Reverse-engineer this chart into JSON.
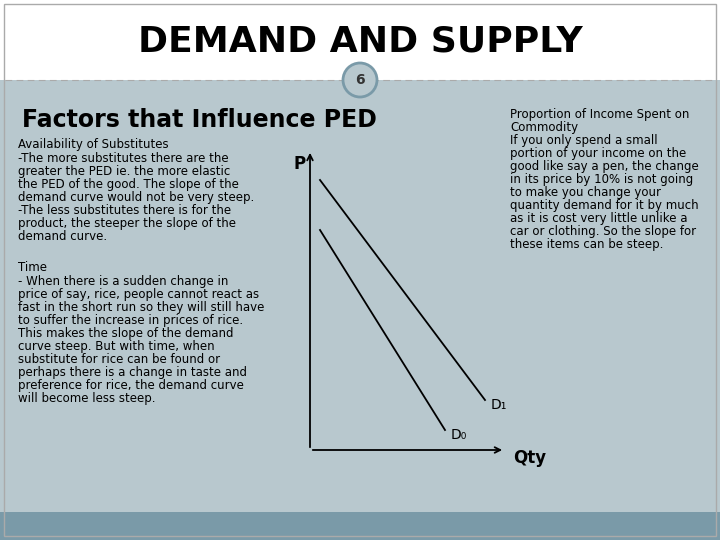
{
  "title": "DEMAND AND SUPPLY",
  "slide_number": "6",
  "section_title": "Factors that Influence PED",
  "bg_color": "#b8c8ce",
  "header_bg": "#ffffff",
  "footer_bg": "#7a9aa8",
  "text_color": "#000000",
  "avail_title": "Availability of Substitutes",
  "avail_body": [
    "-The more substitutes there are the",
    "greater the PED ie. the more elastic",
    "the PED of the good. The slope of the",
    "demand curve would not be very steep.",
    "-The less substitutes there is for the",
    "product, the steeper the slope of the",
    "demand curve."
  ],
  "time_title": "Time",
  "time_body": [
    "- When there is a sudden change in",
    "price of say, rice, people cannot react as",
    "fast in the short run so they will still have",
    "to suffer the increase in prices of rice.",
    "This makes the slope of the demand",
    "curve steep. But with time, when",
    "substitute for rice can be found or",
    "perhaps there is a change in taste and",
    "preference for rice, the demand curve",
    "will become less steep."
  ],
  "right_lines": [
    "Proportion of Income Spent on",
    "Commodity",
    "If you only spend a small",
    "portion of your income on the",
    "good like say a pen, the change",
    "in its price by 10% is not going",
    "to make you change your",
    "quantity demand for it by much",
    "as it is cost very little unlike a",
    "car or clothing. So the slope for",
    "these items can be steep."
  ],
  "axis_label_P": "P",
  "axis_label_Qty": "Qty",
  "d1_label": "D₁",
  "d0_label": "D₀",
  "circle_color": "#7a9aa8",
  "circle_edge": "#5a7a88"
}
